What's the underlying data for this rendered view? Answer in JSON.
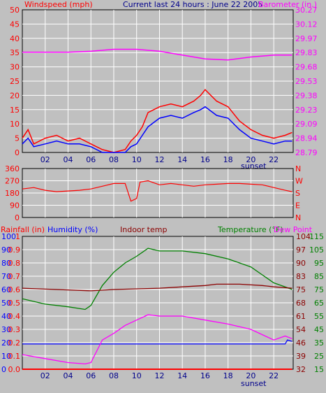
{
  "header": {
    "left_label": "Windspeed (mph)",
    "center_label": "Current last 24 hours : June 22 2005",
    "right_label": "Barometer (in.)"
  },
  "legend": {
    "rainfall": "Rainfall (in)",
    "humidity": "Humidity (%)",
    "indoor": "Indoor temp",
    "temperature": "Temperature (°F)",
    "dewpoint": "Dew Point"
  },
  "colors": {
    "background": "#c0c0c0",
    "plot_bg": "#c0c0c0",
    "grid": "#ffffff",
    "wind_gust": "#ff0000",
    "wind_avg": "#0000ff",
    "barometer": "#ff00ff",
    "direction": "#ff0000",
    "rainfall": "#ff0000",
    "humidity": "#0000ff",
    "indoor": "#8b0000",
    "temperature": "#008000",
    "dewpoint": "#ff00ff"
  },
  "x_ticks": [
    "02",
    "04",
    "06",
    "08",
    "10",
    "12",
    "14",
    "16",
    "18",
    "20",
    "22"
  ],
  "sunset_label": "sunset",
  "chart_data": [
    {
      "type": "line",
      "title": "Current last 24 hours : June 22 2005",
      "xlabel": "",
      "ylabel": "Windspeed (mph)",
      "ylim": [
        0,
        50
      ],
      "y_ticks": [
        0,
        5,
        10,
        15,
        20,
        25,
        30,
        35,
        40,
        45,
        50
      ],
      "y2label": "Barometer (in.)",
      "y2lim": [
        28.79,
        30.27
      ],
      "y2_ticks": [
        "28.79",
        "28.94",
        "29.09",
        "29.23",
        "29.38",
        "29.53",
        "29.68",
        "29.83",
        "29.97",
        "30.12",
        "30.27"
      ],
      "xlim": [
        0,
        23.7
      ],
      "series": [
        {
          "name": "wind gust",
          "points": [
            [
              0,
              5
            ],
            [
              0.5,
              8
            ],
            [
              1,
              3
            ],
            [
              2,
              5
            ],
            [
              3,
              6
            ],
            [
              4,
              4
            ],
            [
              5,
              5
            ],
            [
              6,
              3
            ],
            [
              7,
              1
            ],
            [
              8,
              0
            ],
            [
              9,
              1
            ],
            [
              9.5,
              4
            ],
            [
              10,
              6
            ],
            [
              10.5,
              9
            ],
            [
              11,
              14
            ],
            [
              12,
              16
            ],
            [
              13,
              17
            ],
            [
              14,
              16
            ],
            [
              15,
              18
            ],
            [
              15.6,
              20
            ],
            [
              16,
              22
            ],
            [
              17,
              18
            ],
            [
              18,
              16
            ],
            [
              19,
              11
            ],
            [
              20,
              8
            ],
            [
              21,
              6
            ],
            [
              22,
              5
            ],
            [
              23,
              6
            ],
            [
              23.6,
              7
            ]
          ]
        },
        {
          "name": "wind avg",
          "points": [
            [
              0,
              3
            ],
            [
              0.5,
              5
            ],
            [
              1,
              2
            ],
            [
              2,
              3
            ],
            [
              3,
              4
            ],
            [
              4,
              3
            ],
            [
              5,
              3
            ],
            [
              6,
              2
            ],
            [
              7,
              0
            ],
            [
              8,
              0
            ],
            [
              9,
              0
            ],
            [
              9.5,
              2
            ],
            [
              10,
              3
            ],
            [
              10.5,
              6
            ],
            [
              11,
              9
            ],
            [
              12,
              12
            ],
            [
              13,
              13
            ],
            [
              14,
              12
            ],
            [
              15,
              14
            ],
            [
              15.6,
              15
            ],
            [
              16,
              16
            ],
            [
              17,
              13
            ],
            [
              18,
              12
            ],
            [
              19,
              8
            ],
            [
              20,
              5
            ],
            [
              21,
              4
            ],
            [
              22,
              3
            ],
            [
              23,
              4
            ],
            [
              23.6,
              4
            ]
          ]
        },
        {
          "name": "barometer",
          "points": [
            [
              0,
              29.83
            ],
            [
              2,
              29.83
            ],
            [
              4,
              29.83
            ],
            [
              6,
              29.84
            ],
            [
              8,
              29.86
            ],
            [
              10,
              29.86
            ],
            [
              12,
              29.84
            ],
            [
              14,
              29.8
            ],
            [
              16,
              29.76
            ],
            [
              18,
              29.75
            ],
            [
              20,
              29.78
            ],
            [
              22,
              29.8
            ],
            [
              23.6,
              29.8
            ]
          ]
        }
      ]
    },
    {
      "type": "line",
      "xlabel": "",
      "ylabel": "",
      "ylim": [
        0,
        360
      ],
      "y_ticks": [
        0,
        90,
        180,
        270,
        360
      ],
      "y2_ticks": [
        "N",
        "E",
        "S",
        "W",
        "N"
      ],
      "xlim": [
        0,
        23.7
      ],
      "series": [
        {
          "name": "wind direction",
          "points": [
            [
              0,
              210
            ],
            [
              1,
              220
            ],
            [
              2,
              200
            ],
            [
              3,
              190
            ],
            [
              4,
              195
            ],
            [
              5,
              200
            ],
            [
              6,
              210
            ],
            [
              7,
              230
            ],
            [
              8,
              250
            ],
            [
              9,
              250
            ],
            [
              9.5,
              120
            ],
            [
              10,
              140
            ],
            [
              10.3,
              260
            ],
            [
              11,
              270
            ],
            [
              12,
              240
            ],
            [
              13,
              250
            ],
            [
              14,
              240
            ],
            [
              15,
              230
            ],
            [
              16,
              240
            ],
            [
              17,
              245
            ],
            [
              18,
              250
            ],
            [
              19,
              250
            ],
            [
              20,
              245
            ],
            [
              21,
              240
            ],
            [
              22,
              220
            ],
            [
              23,
              200
            ],
            [
              23.6,
              190
            ]
          ]
        }
      ]
    },
    {
      "type": "line",
      "xlabel": "",
      "ylabel": "Rainfall (in)",
      "ylim": [
        0,
        1.0
      ],
      "y_ticks": [
        "0.0",
        "0.1",
        "0.2",
        "0.3",
        "0.4",
        "0.5",
        "0.6",
        "0.7",
        "0.8",
        "0.9",
        "1"
      ],
      "y_ticks_humidity": [
        "0",
        "10",
        "20",
        "30",
        "40",
        "50",
        "60",
        "70",
        "80",
        "90",
        "100"
      ],
      "y2label": "Temperature (°F)",
      "y2lim": [
        15,
        115
      ],
      "y2_ticks_temperature": [
        "15",
        "25",
        "35",
        "45",
        "55",
        "65",
        "75",
        "85",
        "95",
        "105",
        "115"
      ],
      "y2_ticks_indoor": [
        "32",
        "39",
        "46",
        "54",
        "61",
        "68",
        "75",
        "83",
        "90",
        "97",
        "104"
      ],
      "xlim": [
        0,
        23.7
      ],
      "series": [
        {
          "name": "Rainfall (in)",
          "points": [
            [
              0,
              0
            ],
            [
              23.6,
              0
            ]
          ]
        },
        {
          "name": "Humidity (%)",
          "points": [
            [
              0,
              19
            ],
            [
              23,
              19
            ],
            [
              23.2,
              22
            ],
            [
              23.6,
              21
            ]
          ]
        },
        {
          "name": "Temperature (°F)",
          "points": [
            [
              0,
              68
            ],
            [
              2,
              64
            ],
            [
              4,
              62
            ],
            [
              5.5,
              60
            ],
            [
              6,
              63
            ],
            [
              7,
              78
            ],
            [
              8,
              88
            ],
            [
              9,
              95
            ],
            [
              10,
              100
            ],
            [
              11,
              106
            ],
            [
              12,
              104
            ],
            [
              14,
              104
            ],
            [
              16,
              102
            ],
            [
              18,
              98
            ],
            [
              20,
              92
            ],
            [
              21,
              86
            ],
            [
              22,
              80
            ],
            [
              23,
              77
            ],
            [
              23.6,
              75
            ]
          ]
        },
        {
          "name": "Dew Point",
          "points": [
            [
              0,
              26
            ],
            [
              2,
              23
            ],
            [
              4,
              20
            ],
            [
              5.5,
              19
            ],
            [
              6,
              20
            ],
            [
              7,
              37
            ],
            [
              8,
              42
            ],
            [
              9,
              48
            ],
            [
              10,
              52
            ],
            [
              11,
              56
            ],
            [
              12,
              55
            ],
            [
              14,
              55
            ],
            [
              16,
              52
            ],
            [
              18,
              49
            ],
            [
              20,
              45
            ],
            [
              21,
              41
            ],
            [
              22,
              37
            ],
            [
              23,
              40
            ],
            [
              23.6,
              38
            ]
          ]
        },
        {
          "name": "Indoor temp",
          "points": [
            [
              0,
              76
            ],
            [
              3,
              75
            ],
            [
              6,
              74
            ],
            [
              8,
              75
            ],
            [
              12,
              76
            ],
            [
              14,
              77
            ],
            [
              16,
              78
            ],
            [
              17,
              79
            ],
            [
              19,
              79
            ],
            [
              21,
              78
            ],
            [
              22,
              77
            ],
            [
              23.6,
              76
            ]
          ]
        }
      ]
    }
  ]
}
